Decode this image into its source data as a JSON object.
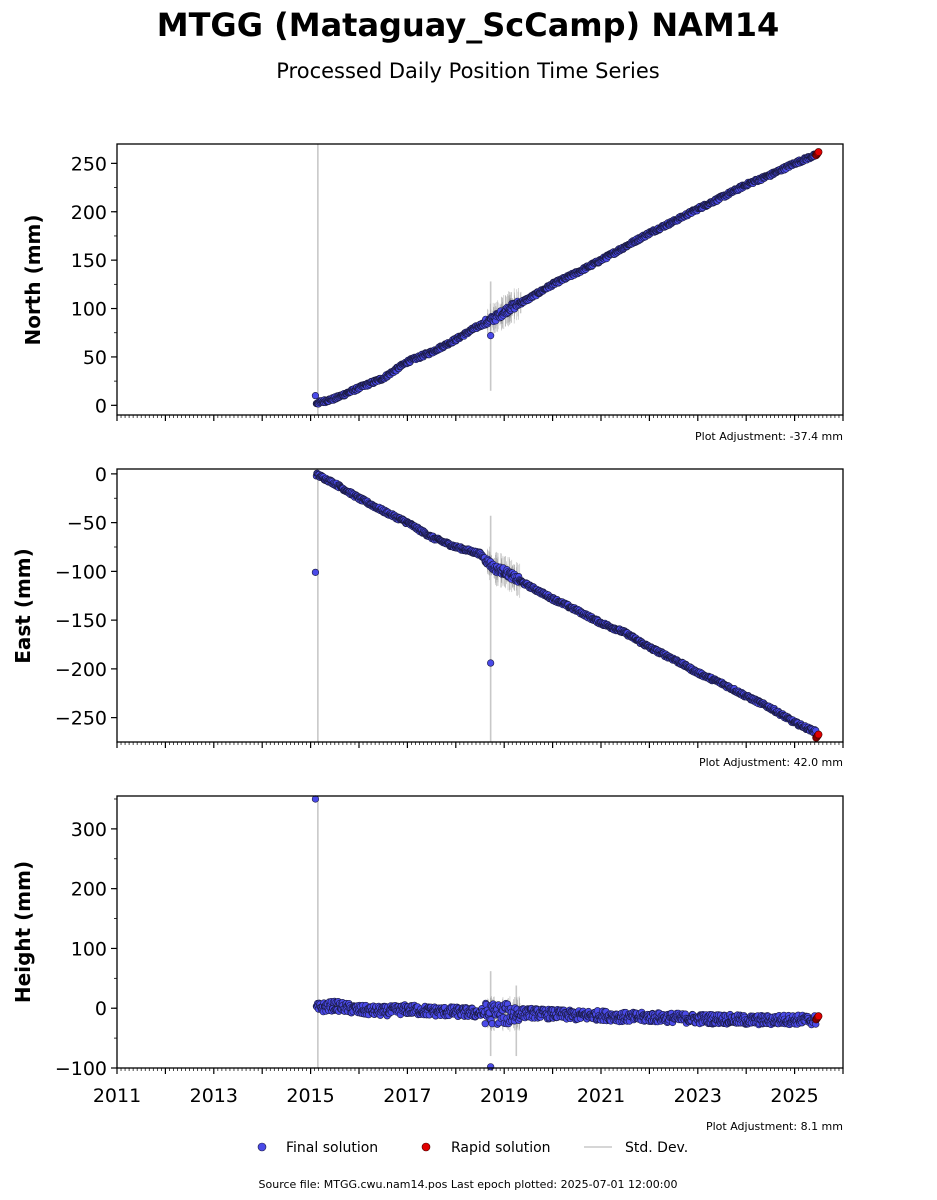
{
  "title": "MTGG (Mataguay_ScCamp) NAM14",
  "subtitle": "Processed Daily Position Time Series",
  "source_text": "Source file: MTGG.cwu.nam14.pos  Last epoch plotted: 2025-07-01 12:00:00",
  "legend": {
    "final_label": "Final solution",
    "rapid_label": "Rapid solution",
    "std_label": "Std. Dev."
  },
  "colors": {
    "final": "#4a4ae8",
    "final_edge": "#1a1a40",
    "rapid": "#e00000",
    "std": "#c8c8c8",
    "std_noisy": "#808080"
  },
  "chart_data": [
    {
      "type": "scatter",
      "ylabel": "North (mm)",
      "adjustment": "Plot Adjustment: -37.4 mm",
      "xlim": [
        2011,
        2026
      ],
      "ylim": [
        -10,
        270
      ],
      "yticks": [
        0,
        50,
        100,
        150,
        200,
        250
      ],
      "ytick_labels": [
        "0",
        "50",
        "100",
        "150",
        "200",
        "250"
      ],
      "xticks": [
        2011,
        2013,
        2015,
        2017,
        2019,
        2021,
        2023,
        2025
      ],
      "xtick_labels": [],
      "series": [
        {
          "points": [
            [
              2015.1,
              2
            ],
            [
              2015.5,
              7
            ],
            [
              2016.0,
              18
            ],
            [
              2016.5,
              28
            ],
            [
              2017.0,
              45
            ],
            [
              2017.5,
              55
            ],
            [
              2018.0,
              68
            ],
            [
              2018.4,
              80
            ],
            [
              2018.8,
              90
            ],
            [
              2019.1,
              100
            ],
            [
              2019.5,
              110
            ],
            [
              2020.0,
              125
            ],
            [
              2020.5,
              137
            ],
            [
              2021.0,
              150
            ],
            [
              2021.5,
              164
            ],
            [
              2022.0,
              178
            ],
            [
              2022.5,
              190
            ],
            [
              2023.0,
              203
            ],
            [
              2023.5,
              215
            ],
            [
              2024.0,
              228
            ],
            [
              2024.5,
              238
            ],
            [
              2025.0,
              250
            ],
            [
              2025.4,
              258
            ]
          ]
        },
        {
          "points": [
            [
              2025.47,
              260
            ]
          ]
        }
      ],
      "outliers": [
        [
          2015.1,
          10
        ],
        [
          2018.72,
          72
        ]
      ],
      "stddev_spikes": [
        [
          2015.15,
          -10,
          270
        ],
        [
          2018.72,
          15,
          128
        ]
      ]
    },
    {
      "type": "scatter",
      "ylabel": "East (mm)",
      "adjustment": "Plot Adjustment: 42.0 mm",
      "xlim": [
        2011,
        2026
      ],
      "ylim": [
        -275,
        5
      ],
      "yticks": [
        0,
        -50,
        -100,
        -150,
        -200,
        -250
      ],
      "ytick_labels": [
        "0",
        "−50",
        "−100",
        "−150",
        "−200",
        "−250"
      ],
      "xticks": [
        2011,
        2013,
        2015,
        2017,
        2019,
        2021,
        2023,
        2025
      ],
      "xtick_labels": [],
      "series": [
        {
          "points": [
            [
              2015.1,
              0
            ],
            [
              2015.5,
              -10
            ],
            [
              2016.0,
              -25
            ],
            [
              2016.5,
              -38
            ],
            [
              2017.0,
              -50
            ],
            [
              2017.5,
              -65
            ],
            [
              2018.0,
              -75
            ],
            [
              2018.5,
              -82
            ],
            [
              2018.8,
              -97
            ],
            [
              2019.0,
              -100
            ],
            [
              2019.4,
              -112
            ],
            [
              2020.0,
              -128
            ],
            [
              2020.5,
              -140
            ],
            [
              2021.0,
              -153
            ],
            [
              2021.5,
              -163
            ],
            [
              2022.0,
              -178
            ],
            [
              2022.5,
              -190
            ],
            [
              2023.0,
              -204
            ],
            [
              2023.5,
              -215
            ],
            [
              2024.0,
              -228
            ],
            [
              2024.5,
              -240
            ],
            [
              2025.0,
              -255
            ],
            [
              2025.4,
              -264
            ]
          ]
        },
        {
          "points": [
            [
              2025.47,
              -269
            ]
          ]
        }
      ],
      "outliers": [
        [
          2015.1,
          -101
        ],
        [
          2018.72,
          -194
        ]
      ],
      "stddev_spikes": [
        [
          2015.15,
          -275,
          5
        ],
        [
          2018.72,
          -275,
          -43
        ]
      ]
    },
    {
      "type": "scatter",
      "ylabel": "Height (mm)",
      "adjustment": "Plot Adjustment: 8.1 mm",
      "xlim": [
        2011,
        2026
      ],
      "ylim": [
        -100,
        355
      ],
      "yticks": [
        -100,
        0,
        100,
        200,
        300
      ],
      "ytick_labels": [
        "−100",
        "0",
        "100",
        "200",
        "300"
      ],
      "xticks": [
        2011,
        2013,
        2015,
        2017,
        2019,
        2021,
        2023,
        2025
      ],
      "xtick_labels": [
        "2011",
        "2013",
        "2015",
        "2017",
        "2019",
        "2021",
        "2023",
        "2025"
      ],
      "series": [
        {
          "points": [
            [
              2015.1,
              0
            ],
            [
              2015.5,
              4
            ],
            [
              2016.0,
              -3
            ],
            [
              2016.5,
              -5
            ],
            [
              2017.0,
              -2
            ],
            [
              2017.5,
              -5
            ],
            [
              2018.0,
              -6
            ],
            [
              2018.5,
              -8
            ],
            [
              2019.0,
              -10
            ],
            [
              2019.5,
              -8
            ],
            [
              2020.0,
              -10
            ],
            [
              2020.5,
              -12
            ],
            [
              2021.0,
              -12
            ],
            [
              2021.5,
              -15
            ],
            [
              2022.0,
              -15
            ],
            [
              2022.5,
              -16
            ],
            [
              2023.0,
              -18
            ],
            [
              2023.5,
              -18
            ],
            [
              2024.0,
              -20
            ],
            [
              2024.5,
              -20
            ],
            [
              2025.0,
              -19
            ],
            [
              2025.4,
              -20
            ]
          ]
        },
        {
          "points": [
            [
              2025.47,
              -16
            ]
          ]
        }
      ],
      "outliers": [
        [
          2015.1,
          350
        ],
        [
          2018.72,
          -98
        ]
      ],
      "stddev_spikes": [
        [
          2015.15,
          -100,
          355
        ],
        [
          2018.72,
          -80,
          62
        ],
        [
          2019.25,
          -80,
          38
        ]
      ]
    }
  ]
}
